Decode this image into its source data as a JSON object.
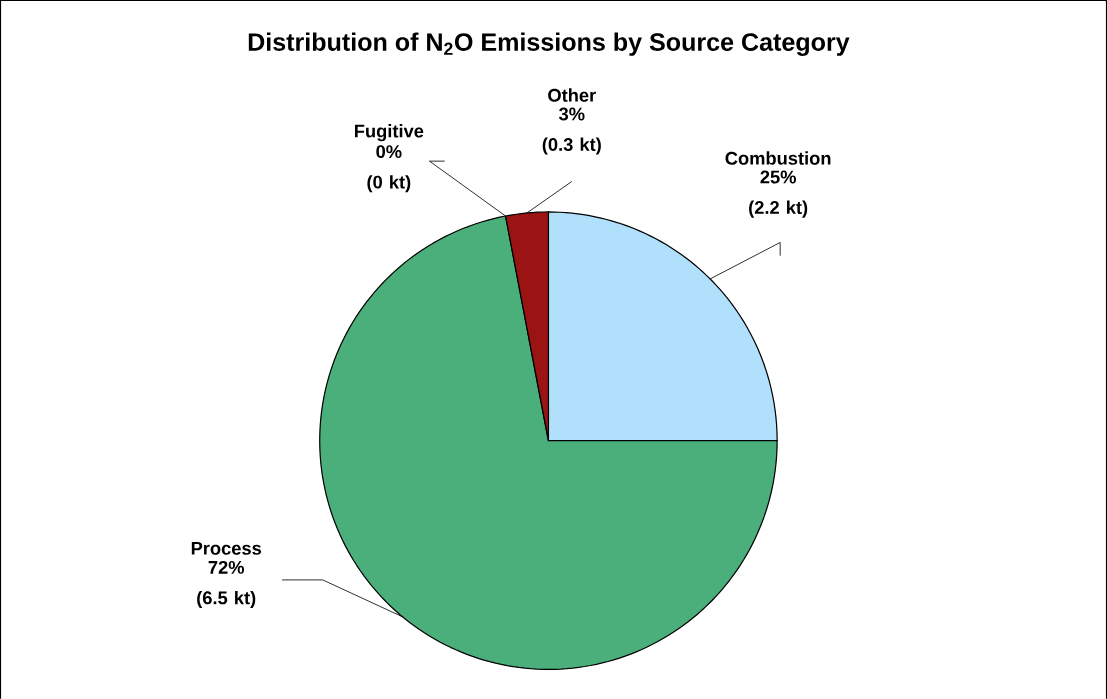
{
  "chart_data": {
    "type": "pie",
    "title": "Distribution of N$_{2}$O Emissions by Source Category",
    "categories": [
      "Combustion",
      "Process",
      "Fugitive",
      "Other"
    ],
    "values": [
      25,
      72,
      0,
      3
    ],
    "colors": [
      "#b0e0fb",
      "#4aaf7b",
      "#ffffcc",
      "#9a1414"
    ],
    "value_labels": [
      "25% (2.2 kt)",
      "72% (6.5 kt)",
      "0% (0 kt)",
      "3% (0.3 kt)"
    ]
  }
}
